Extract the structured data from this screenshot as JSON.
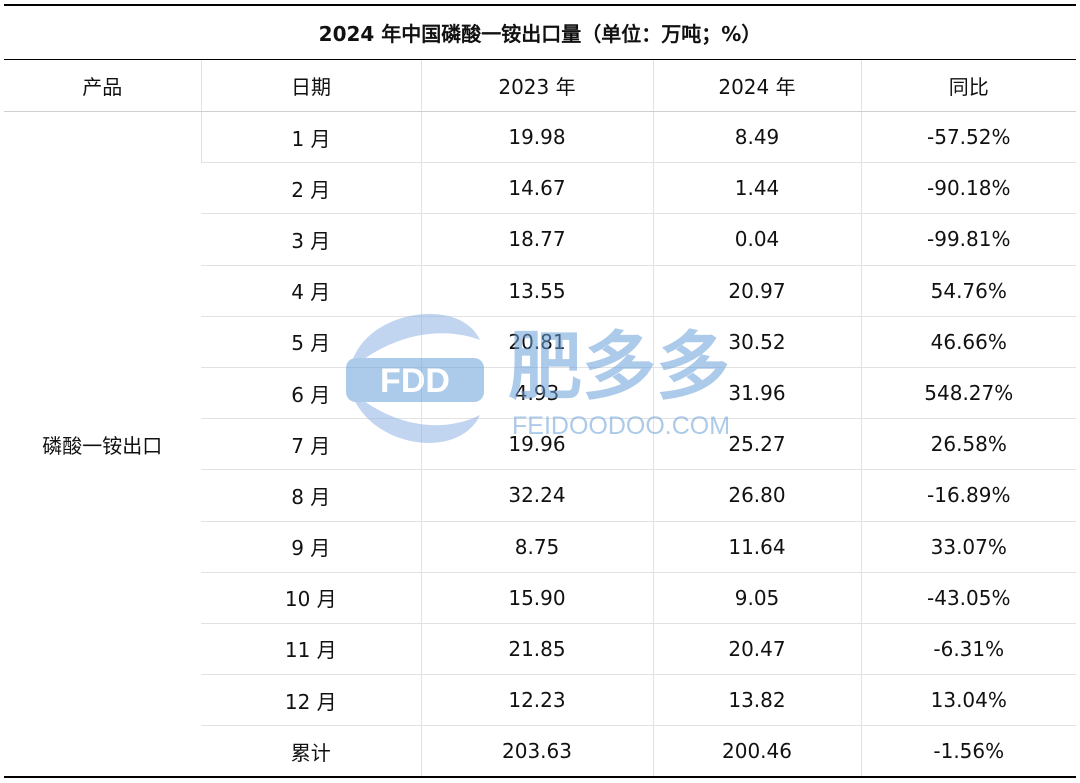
{
  "chart_data": {
    "type": "table",
    "title": "2024 年中国磷酸一铵出口量（单位：万吨；%）",
    "columns": [
      "产品",
      "日期",
      "2023 年",
      "2024 年",
      "同比"
    ],
    "product": "磷酸一铵出口",
    "rows": [
      {
        "date": "1 月",
        "y2023": "19.98",
        "y2024": "8.49",
        "yoy": "-57.52%"
      },
      {
        "date": "2 月",
        "y2023": "14.67",
        "y2024": "1.44",
        "yoy": "-90.18%"
      },
      {
        "date": "3 月",
        "y2023": "18.77",
        "y2024": "0.04",
        "yoy": "-99.81%"
      },
      {
        "date": "4 月",
        "y2023": "13.55",
        "y2024": "20.97",
        "yoy": "54.76%"
      },
      {
        "date": "5 月",
        "y2023": "20.81",
        "y2024": "30.52",
        "yoy": "46.66%"
      },
      {
        "date": "6 月",
        "y2023": "4.93",
        "y2024": "31.96",
        "yoy": "548.27%"
      },
      {
        "date": "7 月",
        "y2023": "19.96",
        "y2024": "25.27",
        "yoy": "26.58%"
      },
      {
        "date": "8 月",
        "y2023": "32.24",
        "y2024": "26.80",
        "yoy": "-16.89%"
      },
      {
        "date": "9 月",
        "y2023": "8.75",
        "y2024": "11.64",
        "yoy": "33.07%"
      },
      {
        "date": "10 月",
        "y2023": "15.90",
        "y2024": "9.05",
        "yoy": "-43.05%"
      },
      {
        "date": "11 月",
        "y2023": "21.85",
        "y2024": "20.47",
        "yoy": "-6.31%"
      },
      {
        "date": "12 月",
        "y2023": "12.23",
        "y2024": "13.82",
        "yoy": "13.04%"
      },
      {
        "date": "累计",
        "y2023": "203.63",
        "y2024": "200.46",
        "yoy": "-1.56%"
      }
    ]
  },
  "watermark": {
    "logo_text": "FDD",
    "brand": "肥多多",
    "site": "FEIDOODOO.COM",
    "color": "#6a9fd8"
  }
}
